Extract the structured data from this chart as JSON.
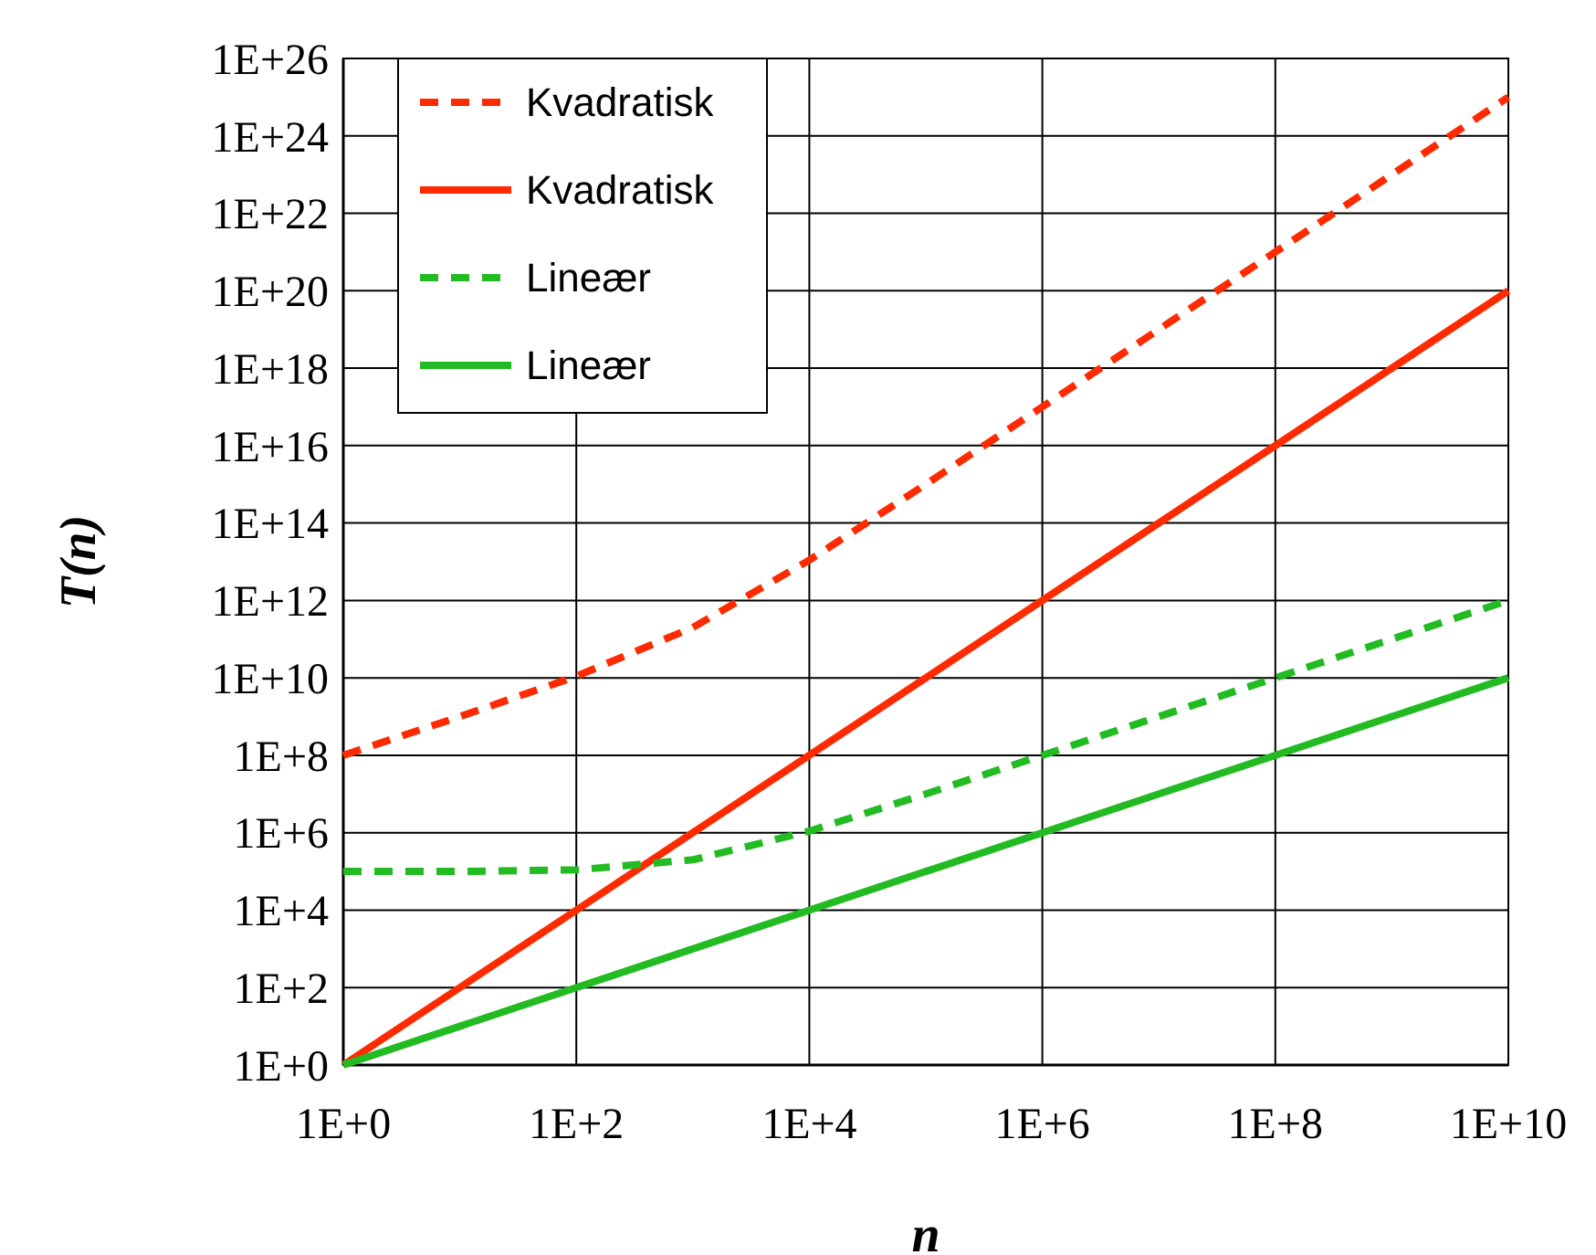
{
  "chart_data": {
    "type": "line",
    "xlabel": "n",
    "ylabel": "T(n)",
    "log": "xy",
    "grid": true,
    "legend": "top left",
    "marker": "none",
    "x": [
      1,
      10,
      100,
      1000,
      10000,
      100000,
      1000000,
      10000000,
      100000000,
      1000000000,
      10000000000
    ],
    "xlim": [
      1,
      10000000000
    ],
    "xticks": [
      {
        "value": 1,
        "label": "1E+0"
      },
      {
        "value": 100,
        "label": "1E+2"
      },
      {
        "value": 10000,
        "label": "1E+4"
      },
      {
        "value": 1000000,
        "label": "1E+6"
      },
      {
        "value": 100000000,
        "label": "1E+8"
      },
      {
        "value": 10000000000,
        "label": "1E+10"
      }
    ],
    "ylim": [
      1,
      1e+26
    ],
    "yticks": [
      {
        "value": 1,
        "label": "1E+0"
      },
      {
        "value": 100.0,
        "label": "1E+2"
      },
      {
        "value": 10000.0,
        "label": "1E+4"
      },
      {
        "value": 1000000.0,
        "label": "1E+6"
      },
      {
        "value": 100000000.0,
        "label": "1E+8"
      },
      {
        "value": 10000000000.0,
        "label": "1E+10"
      },
      {
        "value": 1000000000000.0,
        "label": "1E+12"
      },
      {
        "value": 100000000000000.0,
        "label": "1E+14"
      },
      {
        "value": 1e+16,
        "label": "1E+16"
      },
      {
        "value": 1e+18,
        "label": "1E+18"
      },
      {
        "value": 1e+20,
        "label": "1E+20"
      },
      {
        "value": 1e+22,
        "label": "1E+22"
      },
      {
        "value": 1e+24,
        "label": "1E+24"
      },
      {
        "value": 1e+26,
        "label": "1E+26"
      }
    ],
    "series": [
      {
        "name": "Kvadratisk",
        "color": "#ff2a00",
        "line_style": "dashed",
        "values": [
          100000000.0,
          1000000000.0,
          11000000000.0,
          200000000000.0,
          11000000000000.0,
          1000000000000000.0,
          1e+17,
          1e+19,
          1e+21,
          1e+23,
          1e+25
        ]
      },
      {
        "name": "Kvadratisk",
        "color": "#ff2a00",
        "line_style": "solid",
        "values": [
          1,
          100.0,
          10000.0,
          1000000.0,
          100000000.0,
          10000000000.0,
          1000000000000.0,
          100000000000000.0,
          1e+16,
          1e+18,
          1e+20
        ]
      },
      {
        "name": "Lineær",
        "color": "#22bb22",
        "line_style": "dashed",
        "values": [
          100000.0,
          100000.0,
          110000.0,
          200000.0,
          1100000.0,
          10000000.0,
          100000000.0,
          1000000000.0,
          10000000000.0,
          100000000000.0,
          1000000000000.0
        ]
      },
      {
        "name": "Lineær",
        "color": "#22bb22",
        "line_style": "solid",
        "values": [
          1,
          10,
          100,
          1000,
          10000,
          100000,
          1000000,
          10000000,
          100000000,
          1000000000,
          10000000000
        ]
      }
    ]
  }
}
